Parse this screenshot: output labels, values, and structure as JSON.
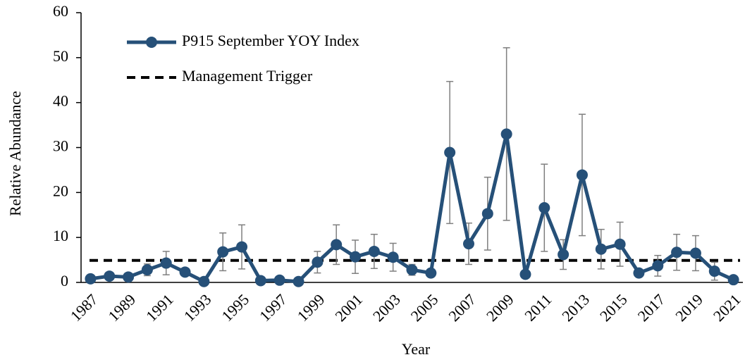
{
  "chart_data": {
    "type": "line",
    "x_label": "Year",
    "y_label": "Relative Abundance",
    "x": [
      1987,
      1988,
      1989,
      1990,
      1991,
      1992,
      1993,
      1994,
      1995,
      1996,
      1997,
      1998,
      1999,
      2000,
      2001,
      2002,
      2003,
      2004,
      2005,
      2006,
      2007,
      2008,
      2009,
      2010,
      2011,
      2012,
      2013,
      2014,
      2015,
      2016,
      2017,
      2018,
      2019,
      2020,
      2021
    ],
    "series": [
      {
        "name": "P915 September YOY Index",
        "color": "#265078",
        "error_color": "#7f7f7f",
        "values": [
          0.8,
          1.4,
          1.2,
          2.8,
          4.3,
          2.3,
          0.2,
          6.8,
          7.9,
          0.4,
          0.5,
          0.2,
          4.5,
          8.4,
          5.7,
          6.9,
          5.6,
          2.8,
          2.1,
          28.9,
          8.6,
          15.3,
          33.0,
          1.8,
          16.6,
          6.2,
          23.9,
          7.4,
          8.5,
          2.1,
          3.7,
          6.7,
          6.5,
          2.5,
          0.6
        ],
        "errors": [
          0.3,
          0.5,
          0.5,
          1.3,
          2.6,
          0.8,
          0.2,
          4.2,
          4.9,
          0.3,
          0.3,
          0.2,
          2.4,
          4.4,
          3.7,
          3.8,
          3.1,
          1.2,
          0.6,
          15.8,
          4.6,
          8.1,
          19.2,
          0.8,
          9.7,
          3.3,
          13.5,
          4.4,
          4.9,
          0.6,
          2.3,
          4.0,
          3.9,
          2.0,
          0.3
        ]
      }
    ],
    "trigger": {
      "name": "Management Trigger",
      "value": 4.9,
      "color": "#000000"
    },
    "xlim": [
      1986.5,
      2021.5
    ],
    "xticks": [
      1987,
      1989,
      1991,
      1993,
      1995,
      1997,
      1999,
      2001,
      2003,
      2005,
      2007,
      2009,
      2011,
      2013,
      2015,
      2017,
      2019,
      2021
    ],
    "ylim": [
      0,
      60
    ],
    "yticks": [
      0,
      10,
      20,
      30,
      40,
      50,
      60
    ],
    "grid": false,
    "legend": "top-left"
  }
}
